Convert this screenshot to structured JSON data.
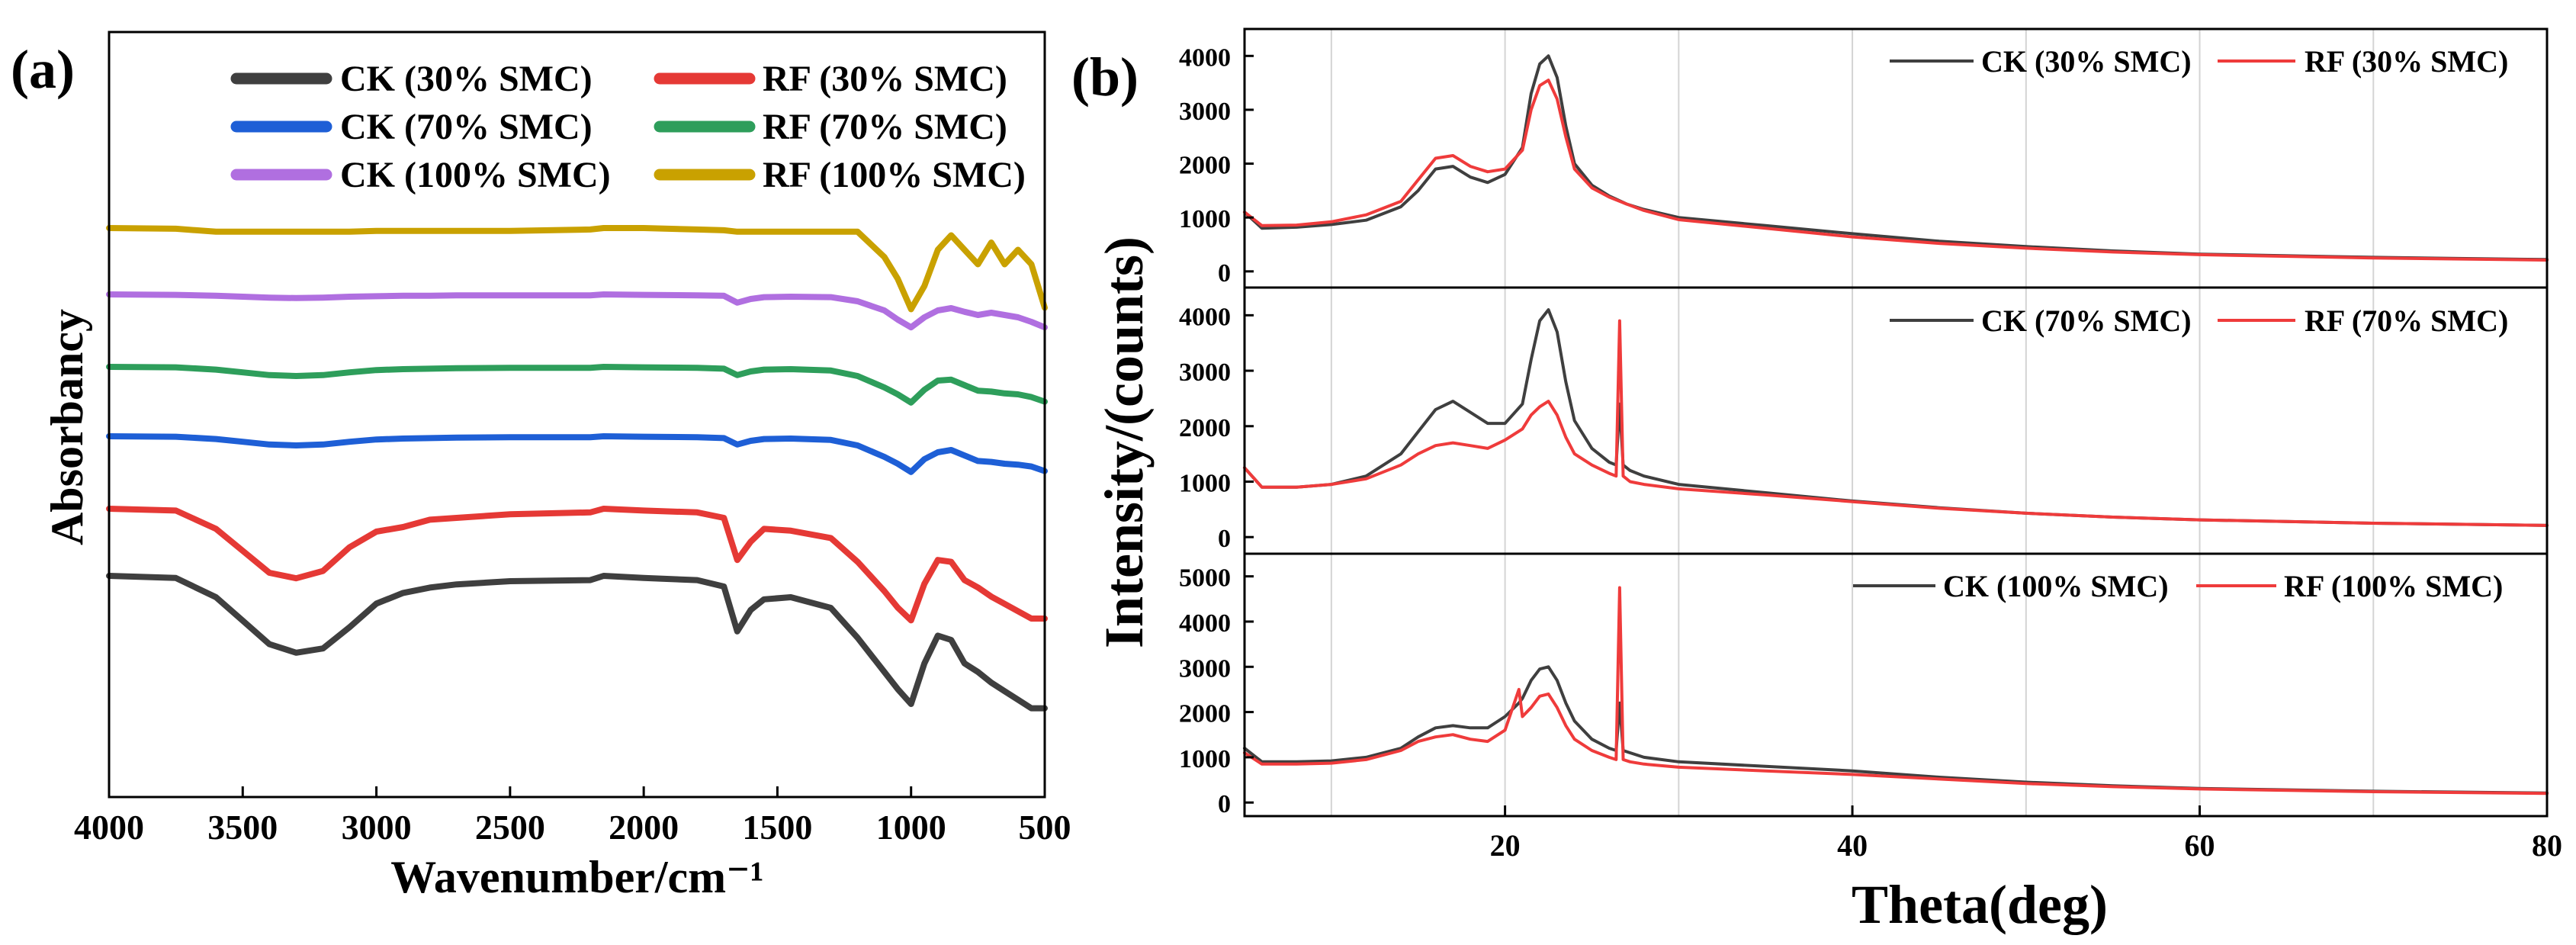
{
  "panel_labels": {
    "a": "(a)",
    "b": "(b)"
  },
  "chart_data": [
    {
      "type": "line",
      "panel": "(a)",
      "title": "",
      "xlabel": "Wavenumber/cm⁻¹",
      "ylabel": "Absorbancy",
      "xlim": [
        4000,
        500
      ],
      "x_reversed": true,
      "xticks": [
        4000,
        3500,
        3000,
        2500,
        2000,
        1500,
        1000,
        500
      ],
      "x": [
        4000,
        3750,
        3600,
        3500,
        3400,
        3300,
        3200,
        3100,
        3000,
        2900,
        2800,
        2700,
        2500,
        2200,
        2150,
        2000,
        1800,
        1700,
        1650,
        1600,
        1550,
        1450,
        1300,
        1200,
        1100,
        1050,
        1000,
        950,
        900,
        850,
        800,
        750,
        700,
        650,
        600,
        550,
        500
      ],
      "legend": {
        "placement": "top",
        "entries": [
          "CK (30% SMC)",
          "RF (30% SMC)",
          "CK (70% SMC)",
          "RF (70% SMC)",
          "CK (100% SMC)",
          "RF (100% SMC)"
        ]
      },
      "series": [
        {
          "name": "CK (30% SMC)",
          "color": "#3f3f3f",
          "values": [
            0.0,
            0.02,
            0.2,
            0.42,
            0.64,
            0.72,
            0.68,
            0.48,
            0.26,
            0.16,
            0.11,
            0.08,
            0.05,
            0.04,
            0.0,
            0.02,
            0.04,
            0.1,
            0.52,
            0.32,
            0.22,
            0.2,
            0.3,
            0.58,
            0.9,
            1.06,
            1.2,
            0.82,
            0.56,
            0.6,
            0.82,
            0.9,
            1.0,
            1.08,
            1.16,
            1.24,
            1.24
          ]
        },
        {
          "name": "RF (30% SMC)",
          "color": "#e53935",
          "values": [
            0.0,
            0.02,
            0.22,
            0.46,
            0.7,
            0.76,
            0.68,
            0.42,
            0.25,
            0.2,
            0.12,
            0.1,
            0.06,
            0.04,
            0.0,
            0.02,
            0.04,
            0.1,
            0.56,
            0.36,
            0.22,
            0.24,
            0.32,
            0.58,
            0.9,
            1.08,
            1.22,
            0.82,
            0.56,
            0.58,
            0.78,
            0.86,
            0.96,
            1.04,
            1.12,
            1.2,
            1.2
          ]
        },
        {
          "name": "CK (70% SMC)",
          "color": "#1e5fd6",
          "values": [
            0.0,
            0.01,
            0.06,
            0.12,
            0.18,
            0.2,
            0.18,
            0.12,
            0.07,
            0.05,
            0.04,
            0.03,
            0.02,
            0.02,
            0.0,
            0.01,
            0.02,
            0.04,
            0.18,
            0.1,
            0.06,
            0.05,
            0.08,
            0.2,
            0.45,
            0.6,
            0.78,
            0.5,
            0.35,
            0.3,
            0.42,
            0.54,
            0.56,
            0.6,
            0.62,
            0.66,
            0.76
          ]
        },
        {
          "name": "RF (70% SMC)",
          "color": "#2e9e5b",
          "values": [
            0.0,
            0.01,
            0.06,
            0.12,
            0.18,
            0.2,
            0.18,
            0.12,
            0.07,
            0.05,
            0.04,
            0.03,
            0.02,
            0.02,
            0.0,
            0.01,
            0.02,
            0.04,
            0.18,
            0.1,
            0.06,
            0.05,
            0.08,
            0.2,
            0.45,
            0.6,
            0.78,
            0.5,
            0.3,
            0.28,
            0.4,
            0.52,
            0.54,
            0.58,
            0.6,
            0.66,
            0.76
          ]
        },
        {
          "name": "CK (100% SMC)",
          "color": "#b06fe0",
          "values": [
            0.0,
            0.01,
            0.03,
            0.05,
            0.07,
            0.08,
            0.07,
            0.05,
            0.04,
            0.03,
            0.03,
            0.02,
            0.02,
            0.02,
            0.0,
            0.01,
            0.02,
            0.03,
            0.18,
            0.1,
            0.06,
            0.05,
            0.06,
            0.15,
            0.35,
            0.55,
            0.72,
            0.5,
            0.35,
            0.3,
            0.38,
            0.45,
            0.4,
            0.45,
            0.5,
            0.6,
            0.72
          ]
        },
        {
          "name": "RF (100% SMC)",
          "color": "#c9a100",
          "values": [
            0.0,
            0.01,
            0.05,
            0.05,
            0.05,
            0.05,
            0.05,
            0.05,
            0.04,
            0.04,
            0.04,
            0.04,
            0.04,
            0.02,
            0.0,
            0.0,
            0.02,
            0.03,
            0.05,
            0.05,
            0.05,
            0.05,
            0.05,
            0.05,
            0.4,
            0.7,
            1.12,
            0.8,
            0.3,
            0.1,
            0.3,
            0.5,
            0.2,
            0.5,
            0.3,
            0.5,
            1.1
          ]
        }
      ]
    },
    {
      "type": "line",
      "panel": "(b)",
      "title": "",
      "xlabel": "Theta(deg)",
      "ylabel": "Intensity/(counts)",
      "xlim": [
        5,
        80
      ],
      "xticks": [
        20,
        40,
        60,
        80
      ],
      "vertical_gridlines_at": [
        10,
        20,
        30,
        40,
        50,
        60,
        70
      ],
      "subplots": [
        {
          "ylim": [
            -300,
            4500
          ],
          "yticks": [
            0,
            1000,
            2000,
            3000,
            4000
          ],
          "legend": [
            "CK (30% SMC)",
            "RF (30% SMC)"
          ],
          "x": [
            5,
            6,
            8,
            10,
            12,
            14,
            15,
            16,
            17,
            18,
            19,
            20,
            21,
            21.5,
            22,
            22.5,
            23,
            23.5,
            24,
            25,
            26,
            27,
            28,
            30,
            35,
            40,
            45,
            50,
            55,
            60,
            70,
            80
          ],
          "series": [
            {
              "name": "CK (30% SMC)",
              "color": "#3f3f3f",
              "values": [
                1100,
                800,
                820,
                870,
                950,
                1200,
                1500,
                1900,
                1950,
                1750,
                1650,
                1800,
                2300,
                3300,
                3850,
                4000,
                3600,
                2700,
                2000,
                1600,
                1400,
                1250,
                1150,
                1000,
                850,
                700,
                560,
                460,
                380,
                320,
                260,
                220
              ]
            },
            {
              "name": "RF (30% SMC)",
              "color": "#ef3b3b",
              "values": [
                1100,
                850,
                860,
                920,
                1050,
                1300,
                1700,
                2100,
                2150,
                1950,
                1850,
                1900,
                2250,
                3000,
                3450,
                3550,
                3200,
                2500,
                1900,
                1550,
                1380,
                1250,
                1130,
                960,
                800,
                640,
                520,
                430,
                360,
                310,
                250,
                210
              ]
            }
          ]
        },
        {
          "ylim": [
            -300,
            4500
          ],
          "yticks": [
            0,
            1000,
            2000,
            3000,
            4000
          ],
          "legend": [
            "CK (70% SMC)",
            "RF (70% SMC)"
          ],
          "x": [
            5,
            6,
            8,
            10,
            12,
            14,
            15,
            16,
            17,
            18,
            19,
            20,
            21,
            21.5,
            22,
            22.5,
            23,
            23.5,
            24,
            25,
            26,
            26.4,
            26.6,
            26.8,
            27.2,
            28,
            30,
            35,
            40,
            45,
            50,
            55,
            60,
            70,
            80
          ],
          "series": [
            {
              "name": "CK (70% SMC)",
              "color": "#3f3f3f",
              "values": [
                1250,
                900,
                900,
                950,
                1100,
                1500,
                1900,
                2300,
                2450,
                2250,
                2050,
                2050,
                2400,
                3200,
                3900,
                4100,
                3700,
                2800,
                2100,
                1600,
                1350,
                1300,
                2400,
                1300,
                1200,
                1100,
                950,
                800,
                650,
                530,
                430,
                360,
                310,
                250,
                210
              ]
            },
            {
              "name": "RF (70% SMC)",
              "color": "#ef3b3b",
              "values": [
                1250,
                900,
                900,
                950,
                1050,
                1300,
                1500,
                1650,
                1700,
                1650,
                1600,
                1750,
                1950,
                2200,
                2350,
                2450,
                2200,
                1800,
                1500,
                1300,
                1150,
                1100,
                3900,
                1100,
                1000,
                950,
                870,
                760,
                640,
                520,
                430,
                360,
                310,
                250,
                210
              ]
            }
          ]
        },
        {
          "ylim": [
            -300,
            5500
          ],
          "yticks": [
            0,
            1000,
            2000,
            3000,
            4000,
            5000
          ],
          "legend": [
            "CK (100% SMC)",
            "RF (100% SMC)"
          ],
          "x": [
            5,
            6,
            8,
            10,
            12,
            14,
            15,
            16,
            17,
            18,
            19,
            20,
            20.8,
            21,
            21.5,
            22,
            22.5,
            23,
            23.5,
            24,
            25,
            26,
            26.4,
            26.6,
            26.8,
            27.2,
            28,
            30,
            35,
            40,
            45,
            50,
            55,
            60,
            70,
            80
          ],
          "series": [
            {
              "name": "CK (100% SMC)",
              "color": "#3f3f3f",
              "values": [
                1200,
                900,
                900,
                920,
                1000,
                1200,
                1450,
                1650,
                1700,
                1650,
                1650,
                1900,
                2200,
                2300,
                2700,
                2950,
                3000,
                2700,
                2200,
                1800,
                1400,
                1200,
                1150,
                2200,
                1150,
                1100,
                1000,
                900,
                800,
                700,
                560,
                450,
                370,
                310,
                250,
                210
              ]
            },
            {
              "name": "RF (100% SMC)",
              "color": "#ef3b3b",
              "values": [
                1100,
                850,
                850,
                870,
                950,
                1150,
                1350,
                1450,
                1500,
                1400,
                1350,
                1600,
                2500,
                1900,
                2100,
                2350,
                2400,
                2100,
                1700,
                1400,
                1150,
                1000,
                950,
                4750,
                950,
                900,
                850,
                780,
                700,
                620,
                520,
                420,
                350,
                300,
                240,
                200
              ]
            }
          ]
        }
      ]
    }
  ]
}
